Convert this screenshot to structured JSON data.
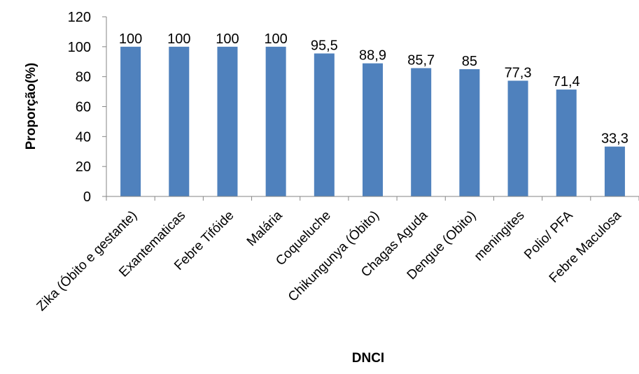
{
  "chart_data": {
    "type": "bar",
    "title": "",
    "xlabel": "DNCI",
    "ylabel": "Proporção(%)",
    "ylim": [
      0,
      120
    ],
    "yticks": [
      0,
      20,
      40,
      60,
      80,
      100,
      120
    ],
    "grid": false,
    "legend": "none",
    "bar_color": "#4F81BD",
    "categories": [
      "Zika (Óbito e gestante)",
      "Exantematicas",
      "Febre Tifóide",
      "Malária",
      "Coqueluche",
      "Chikungunya (Óbito)",
      "Chagas Aguda",
      "Dengue (Obito)",
      "meningites",
      "Polio/ PFA",
      "Febre Maculosa"
    ],
    "values": [
      100,
      100,
      100,
      100,
      95.5,
      88.9,
      85.7,
      85,
      77.3,
      71.4,
      33.3
    ],
    "data_labels": [
      "100",
      "100",
      "100",
      "100",
      "95,5",
      "88,9",
      "85,7",
      "85",
      "77,3",
      "71,4",
      "33,3"
    ]
  }
}
